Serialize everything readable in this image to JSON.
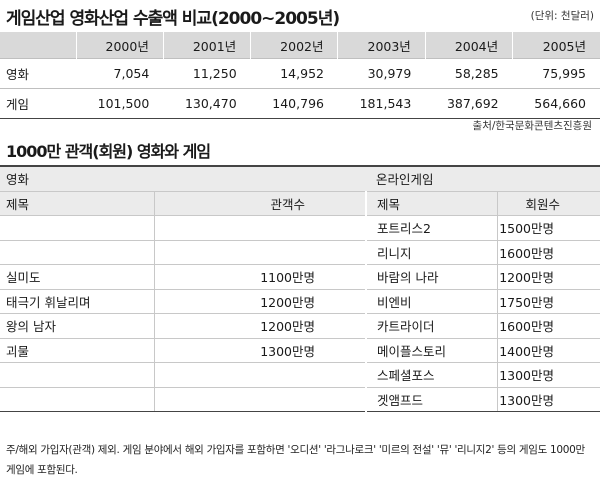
{
  "title": "게임산업 영화산업 수출액 비교(2000~2005년)",
  "unit": "(단위: 천달러)",
  "export_table": {
    "years": [
      "2000년",
      "2001년",
      "2002년",
      "2003년",
      "2004년",
      "2005년"
    ],
    "rows": [
      {
        "label": "영화",
        "values": [
          "7,054",
          "11,250",
          "14,952",
          "30,979",
          "58,285",
          "75,995"
        ]
      },
      {
        "label": "게임",
        "values": [
          "101,500",
          "130,470",
          "140,796",
          "181,543",
          "387,692",
          "564,660"
        ]
      }
    ]
  },
  "source": "출처/한국문화콘텐츠진흥원",
  "title2": "1000만 관객(회원) 영화와 게임",
  "hit_table": {
    "left_section": "영화",
    "right_section": "온라인게임",
    "left_headers": [
      "제목",
      "관객수"
    ],
    "right_headers": [
      "제목",
      "회원수"
    ],
    "rows": [
      {
        "movie": "",
        "audience": "",
        "game": "포트리스2",
        "members": "1500만명"
      },
      {
        "movie": "",
        "audience": "",
        "game": "리니지",
        "members": "1600만명"
      },
      {
        "movie": "실미도",
        "audience": "1100만명",
        "game": "바람의 나라",
        "members": "1200만명"
      },
      {
        "movie": "태극기 휘날리며",
        "audience": "1200만명",
        "game": "비엔비",
        "members": "1750만명"
      },
      {
        "movie": "왕의 남자",
        "audience": "1200만명",
        "game": "카트라이더",
        "members": "1600만명"
      },
      {
        "movie": "괴물",
        "audience": "1300만명",
        "game": "메이플스토리",
        "members": "1400만명"
      },
      {
        "movie": "",
        "audience": "",
        "game": "스페셜포스",
        "members": "1300만명"
      },
      {
        "movie": "",
        "audience": "",
        "game": "겟앰프드",
        "members": "1300만명"
      }
    ]
  },
  "note": "주/해외 가입자(관객) 제외. 게임 분야에서 해외 가입자를 포함하면 '오디션' '라그나로크' '미르의 전설' '뮤' '리니지2' 등의 게임도 1000만 게임에 포함된다."
}
